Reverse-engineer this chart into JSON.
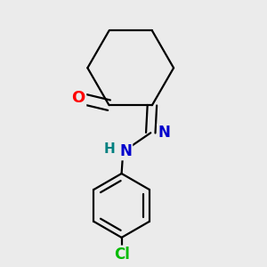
{
  "background_color": "#ebebeb",
  "bond_color": "#000000",
  "bond_lw": 1.6,
  "atom_colors": {
    "O": "#ff0000",
    "N": "#0000cc",
    "N_H": "#008080",
    "Cl": "#00bb00",
    "C": "#000000"
  }
}
